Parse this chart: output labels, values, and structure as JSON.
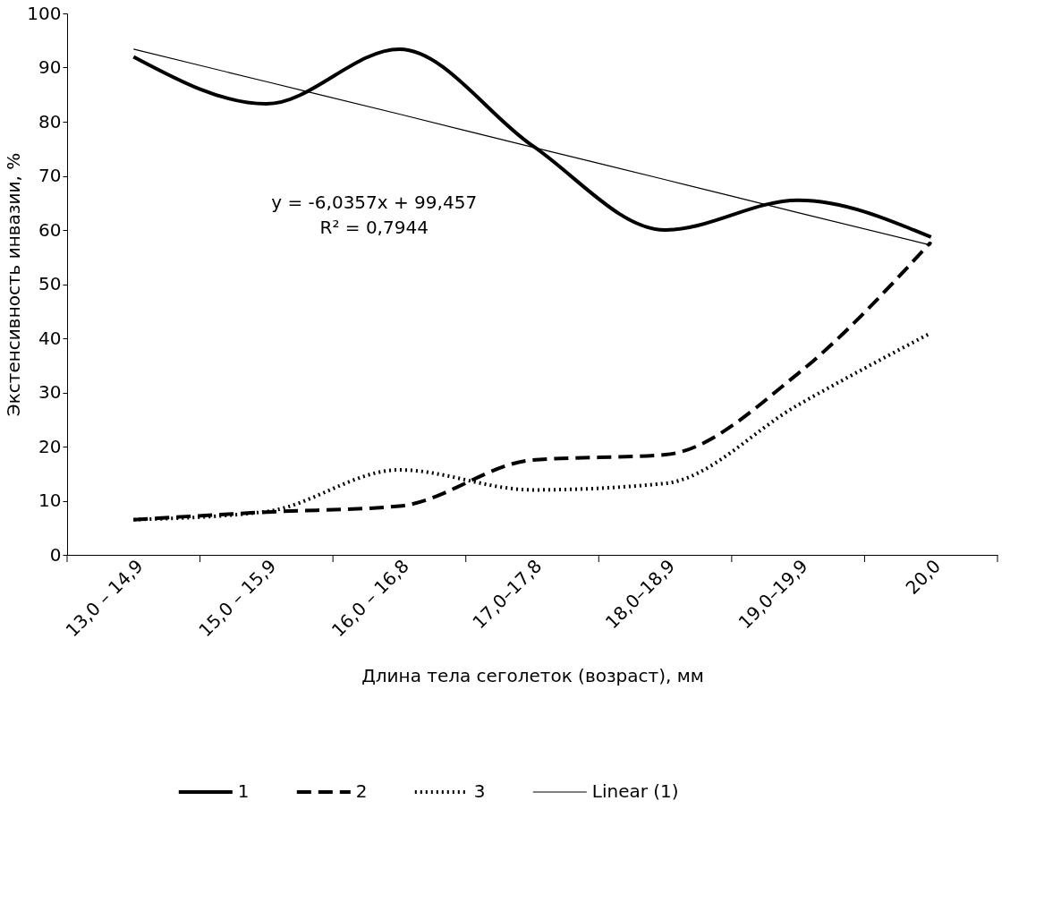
{
  "chart_data": {
    "type": "line",
    "xlabel": "Длина тела сеголеток (возраст), мм",
    "ylabel": "Экстенсивность инвазии, %",
    "categories": [
      "13,0 – 14,9",
      "15,0 – 15,9",
      "16,0 – 16,8",
      "17,0–17,8",
      "18,0–18,9",
      "19,0–19,9",
      "20,0"
    ],
    "series": [
      {
        "name": "1",
        "color": "#000000",
        "line_style": "solid",
        "values": [
          92,
          83.3,
          93.4,
          75.6,
          60,
          65.5,
          58.7
        ]
      },
      {
        "name": "2",
        "color": "#000000",
        "line_style": "dashed",
        "values": [
          6.5,
          7.9,
          9,
          17.5,
          18.5,
          33.5,
          57.8
        ]
      },
      {
        "name": "3",
        "color": "#000000",
        "line_style": "dotted",
        "values": [
          6.5,
          8,
          15.7,
          12,
          13.2,
          27.7,
          41
        ]
      },
      {
        "name": "Linear (1)",
        "type": "line",
        "color": "#000000",
        "line_style": "solid",
        "values": [
          93.4,
          87.4,
          81.4,
          75.3,
          69.3,
          63.2,
          57.2
        ]
      }
    ],
    "ylim": [
      0,
      100
    ],
    "yticks": [
      0,
      10,
      20,
      30,
      40,
      50,
      60,
      70,
      80,
      90,
      100
    ],
    "grid": false,
    "legend": "bottom",
    "marker": "none",
    "annotations": [
      "y = -6,0357x + 99,457",
      "R² = 0,7944"
    ]
  }
}
